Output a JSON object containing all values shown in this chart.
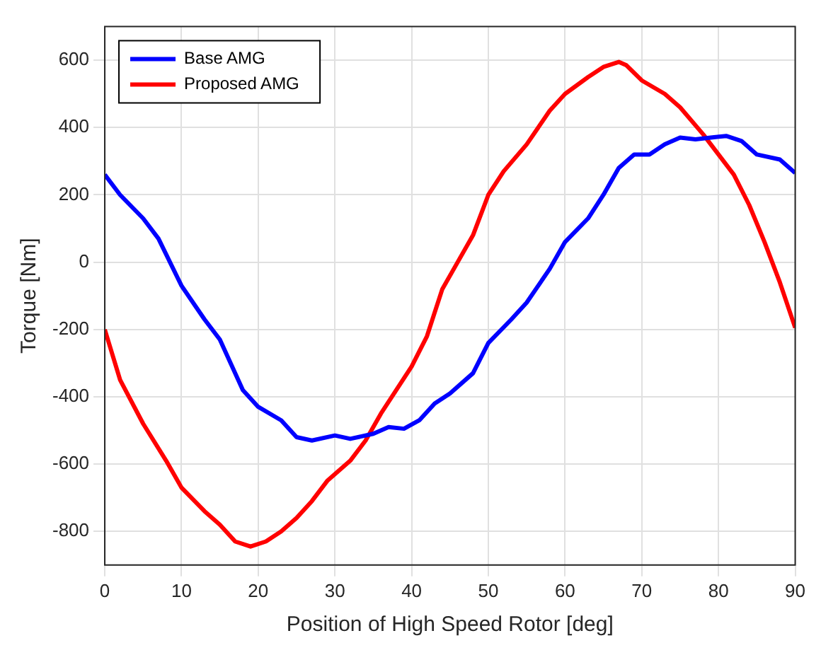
{
  "chart_data": {
    "type": "line",
    "xlabel": "Position of High Speed Rotor [deg]",
    "ylabel": "Torque [Nm]",
    "xlim": [
      0,
      90
    ],
    "xticks": [
      0,
      10,
      20,
      30,
      40,
      50,
      60,
      70,
      80,
      90
    ],
    "ylim": [
      -900,
      700
    ],
    "yticks": [
      -800,
      -600,
      -400,
      -200,
      0,
      200,
      400,
      600
    ],
    "grid": true,
    "legend": "top left",
    "marker": "none",
    "line_style": "solid",
    "series": [
      {
        "name": "Base AMG",
        "color": "#0000ff",
        "x": [
          0,
          2,
          5,
          7,
          10,
          13,
          15,
          18,
          20,
          23,
          25,
          27,
          30,
          32,
          35,
          37,
          39,
          41,
          43,
          45,
          48,
          50,
          53,
          55,
          58,
          60,
          63,
          65,
          67,
          69,
          71,
          73,
          75,
          77,
          79,
          81,
          83,
          85,
          88,
          90
        ],
        "values": [
          260,
          200,
          130,
          70,
          -70,
          -170,
          -230,
          -380,
          -430,
          -470,
          -520,
          -530,
          -515,
          -525,
          -510,
          -490,
          -495,
          -470,
          -420,
          -390,
          -330,
          -240,
          -170,
          -120,
          -20,
          60,
          130,
          200,
          280,
          320,
          320,
          350,
          370,
          365,
          370,
          375,
          360,
          320,
          305,
          265
        ]
      },
      {
        "name": "Proposed AMG",
        "color": "#ff0000",
        "x": [
          0,
          2,
          5,
          8,
          10,
          13,
          15,
          17,
          19,
          21,
          23,
          25,
          27,
          29,
          32,
          34,
          36,
          38,
          40,
          42,
          44,
          46,
          48,
          50,
          52,
          55,
          58,
          60,
          63,
          65,
          67,
          68,
          70,
          73,
          75,
          78,
          80,
          82,
          84,
          86,
          88,
          90
        ],
        "values": [
          -200,
          -350,
          -480,
          -590,
          -670,
          -740,
          -780,
          -830,
          -845,
          -830,
          -800,
          -760,
          -710,
          -650,
          -590,
          -530,
          -450,
          -380,
          -310,
          -220,
          -80,
          0,
          80,
          200,
          270,
          350,
          450,
          500,
          550,
          580,
          595,
          585,
          540,
          500,
          460,
          380,
          320,
          260,
          170,
          60,
          -60,
          -195
        ]
      }
    ]
  }
}
